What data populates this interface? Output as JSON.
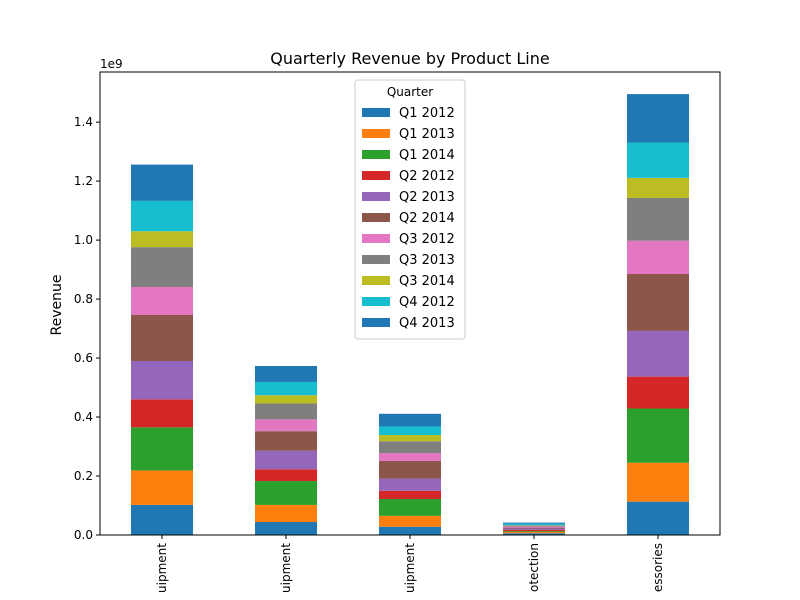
{
  "chart_data": {
    "type": "bar",
    "stacked": true,
    "title": "Quarterly Revenue by Product Line",
    "xlabel": "",
    "ylabel": "Revenue",
    "y_offset_label": "1e9",
    "ylim": [
      0,
      1.57
    ],
    "yticks": [
      "0.0",
      "0.2",
      "0.4",
      "0.6",
      "0.8",
      "1.0",
      "1.2",
      "1.4"
    ],
    "grid": false,
    "legend_title": "Quarter",
    "legend_position": "top-center",
    "categories": [
      "Camping Equipment",
      "Golf Equipment",
      "Mountaineering Equipment",
      "Outdoor Protection",
      "Personal Accessories"
    ],
    "category_labels_visible": [
      "uipment",
      "uipment",
      "uipment",
      "otection",
      "essories"
    ],
    "series": [
      {
        "name": "Q1 2012",
        "color": "#1f77b4",
        "values": [
          0.102,
          0.044,
          0.028,
          0.006,
          0.113
        ]
      },
      {
        "name": "Q1 2013",
        "color": "#ff7f0e",
        "values": [
          0.117,
          0.058,
          0.037,
          0.004,
          0.132
        ]
      },
      {
        "name": "Q1 2014",
        "color": "#2ca02c",
        "values": [
          0.146,
          0.081,
          0.057,
          0.003,
          0.184
        ]
      },
      {
        "name": "Q2 2012",
        "color": "#d62728",
        "values": [
          0.095,
          0.04,
          0.028,
          0.005,
          0.108
        ]
      },
      {
        "name": "Q2 2013",
        "color": "#9467bd",
        "values": [
          0.13,
          0.063,
          0.041,
          0.004,
          0.155
        ]
      },
      {
        "name": "Q2 2014",
        "color": "#8c564b",
        "values": [
          0.156,
          0.066,
          0.06,
          0.003,
          0.193
        ]
      },
      {
        "name": "Q3 2012",
        "color": "#e377c2",
        "values": [
          0.095,
          0.04,
          0.027,
          0.004,
          0.113
        ]
      },
      {
        "name": "Q3 2013",
        "color": "#7f7f7f",
        "values": [
          0.135,
          0.054,
          0.04,
          0.003,
          0.145
        ]
      },
      {
        "name": "Q3 2014",
        "color": "#bcbd22",
        "values": [
          0.054,
          0.028,
          0.021,
          0.001,
          0.068
        ]
      },
      {
        "name": "Q4 2012",
        "color": "#17becf",
        "values": [
          0.103,
          0.045,
          0.029,
          0.005,
          0.12
        ]
      },
      {
        "name": "Q4 2013",
        "color": "#1f77b4",
        "values": [
          0.123,
          0.054,
          0.043,
          0.004,
          0.164
        ]
      }
    ]
  }
}
